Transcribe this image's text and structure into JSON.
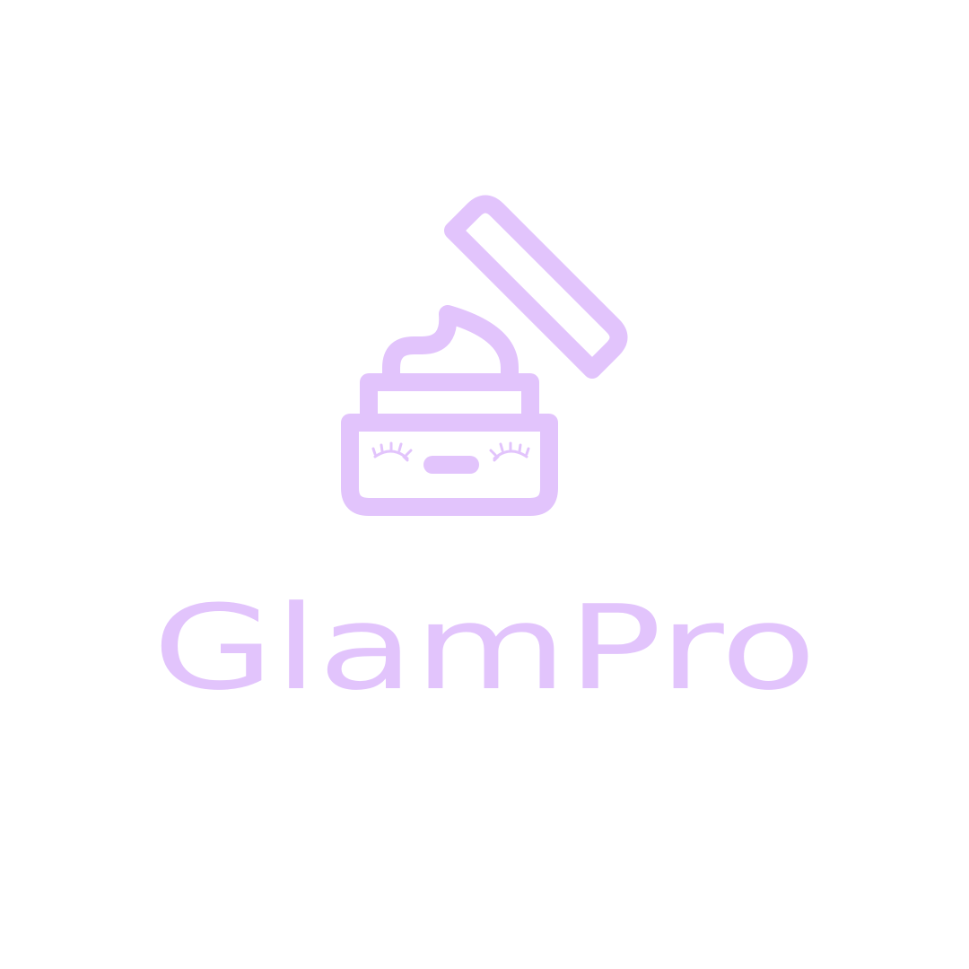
{
  "brand": {
    "name": "GlamPro",
    "color": "#e2c4fc",
    "background": "#ffffff"
  },
  "logo": {
    "icon": "cream-jar-with-open-lid-icon"
  }
}
